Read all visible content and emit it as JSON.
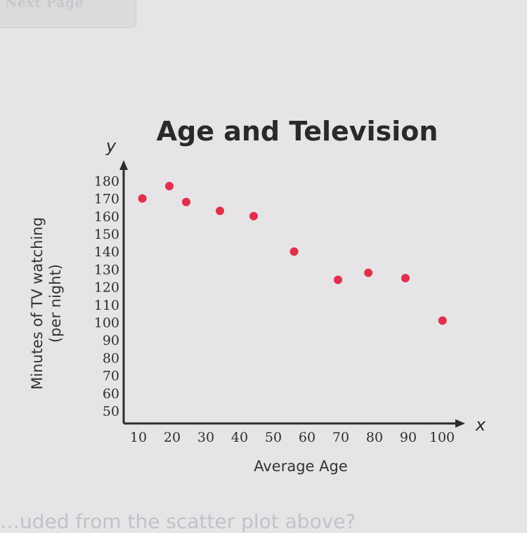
{
  "nav": {
    "next_page_label": "Next Page"
  },
  "question_text": "…uded from the scatter plot above?",
  "colors": {
    "point": "#e0304a",
    "axis": "#2c2c2c",
    "text": "#333333"
  },
  "chart_data": {
    "type": "scatter",
    "title": "Age and Television",
    "xlabel": "Average Age",
    "ylabel": "Minutes of TV watching (per night)",
    "ylabel_lines": [
      "Minutes of TV watching",
      "(per night)"
    ],
    "x_axis_symbol": "x",
    "y_axis_symbol": "y",
    "xlim": [
      0,
      105
    ],
    "ylim": [
      50,
      185
    ],
    "x_ticks": [
      10,
      20,
      30,
      40,
      50,
      60,
      70,
      80,
      90,
      100
    ],
    "y_ticks": [
      50,
      60,
      70,
      80,
      90,
      100,
      110,
      120,
      130,
      140,
      150,
      160,
      170,
      180
    ],
    "grid": false,
    "points": [
      {
        "x": 12,
        "y": 170
      },
      {
        "x": 20,
        "y": 177
      },
      {
        "x": 25,
        "y": 168
      },
      {
        "x": 35,
        "y": 163
      },
      {
        "x": 45,
        "y": 160
      },
      {
        "x": 57,
        "y": 140
      },
      {
        "x": 70,
        "y": 124
      },
      {
        "x": 79,
        "y": 128
      },
      {
        "x": 90,
        "y": 125
      },
      {
        "x": 101,
        "y": 101
      }
    ]
  }
}
